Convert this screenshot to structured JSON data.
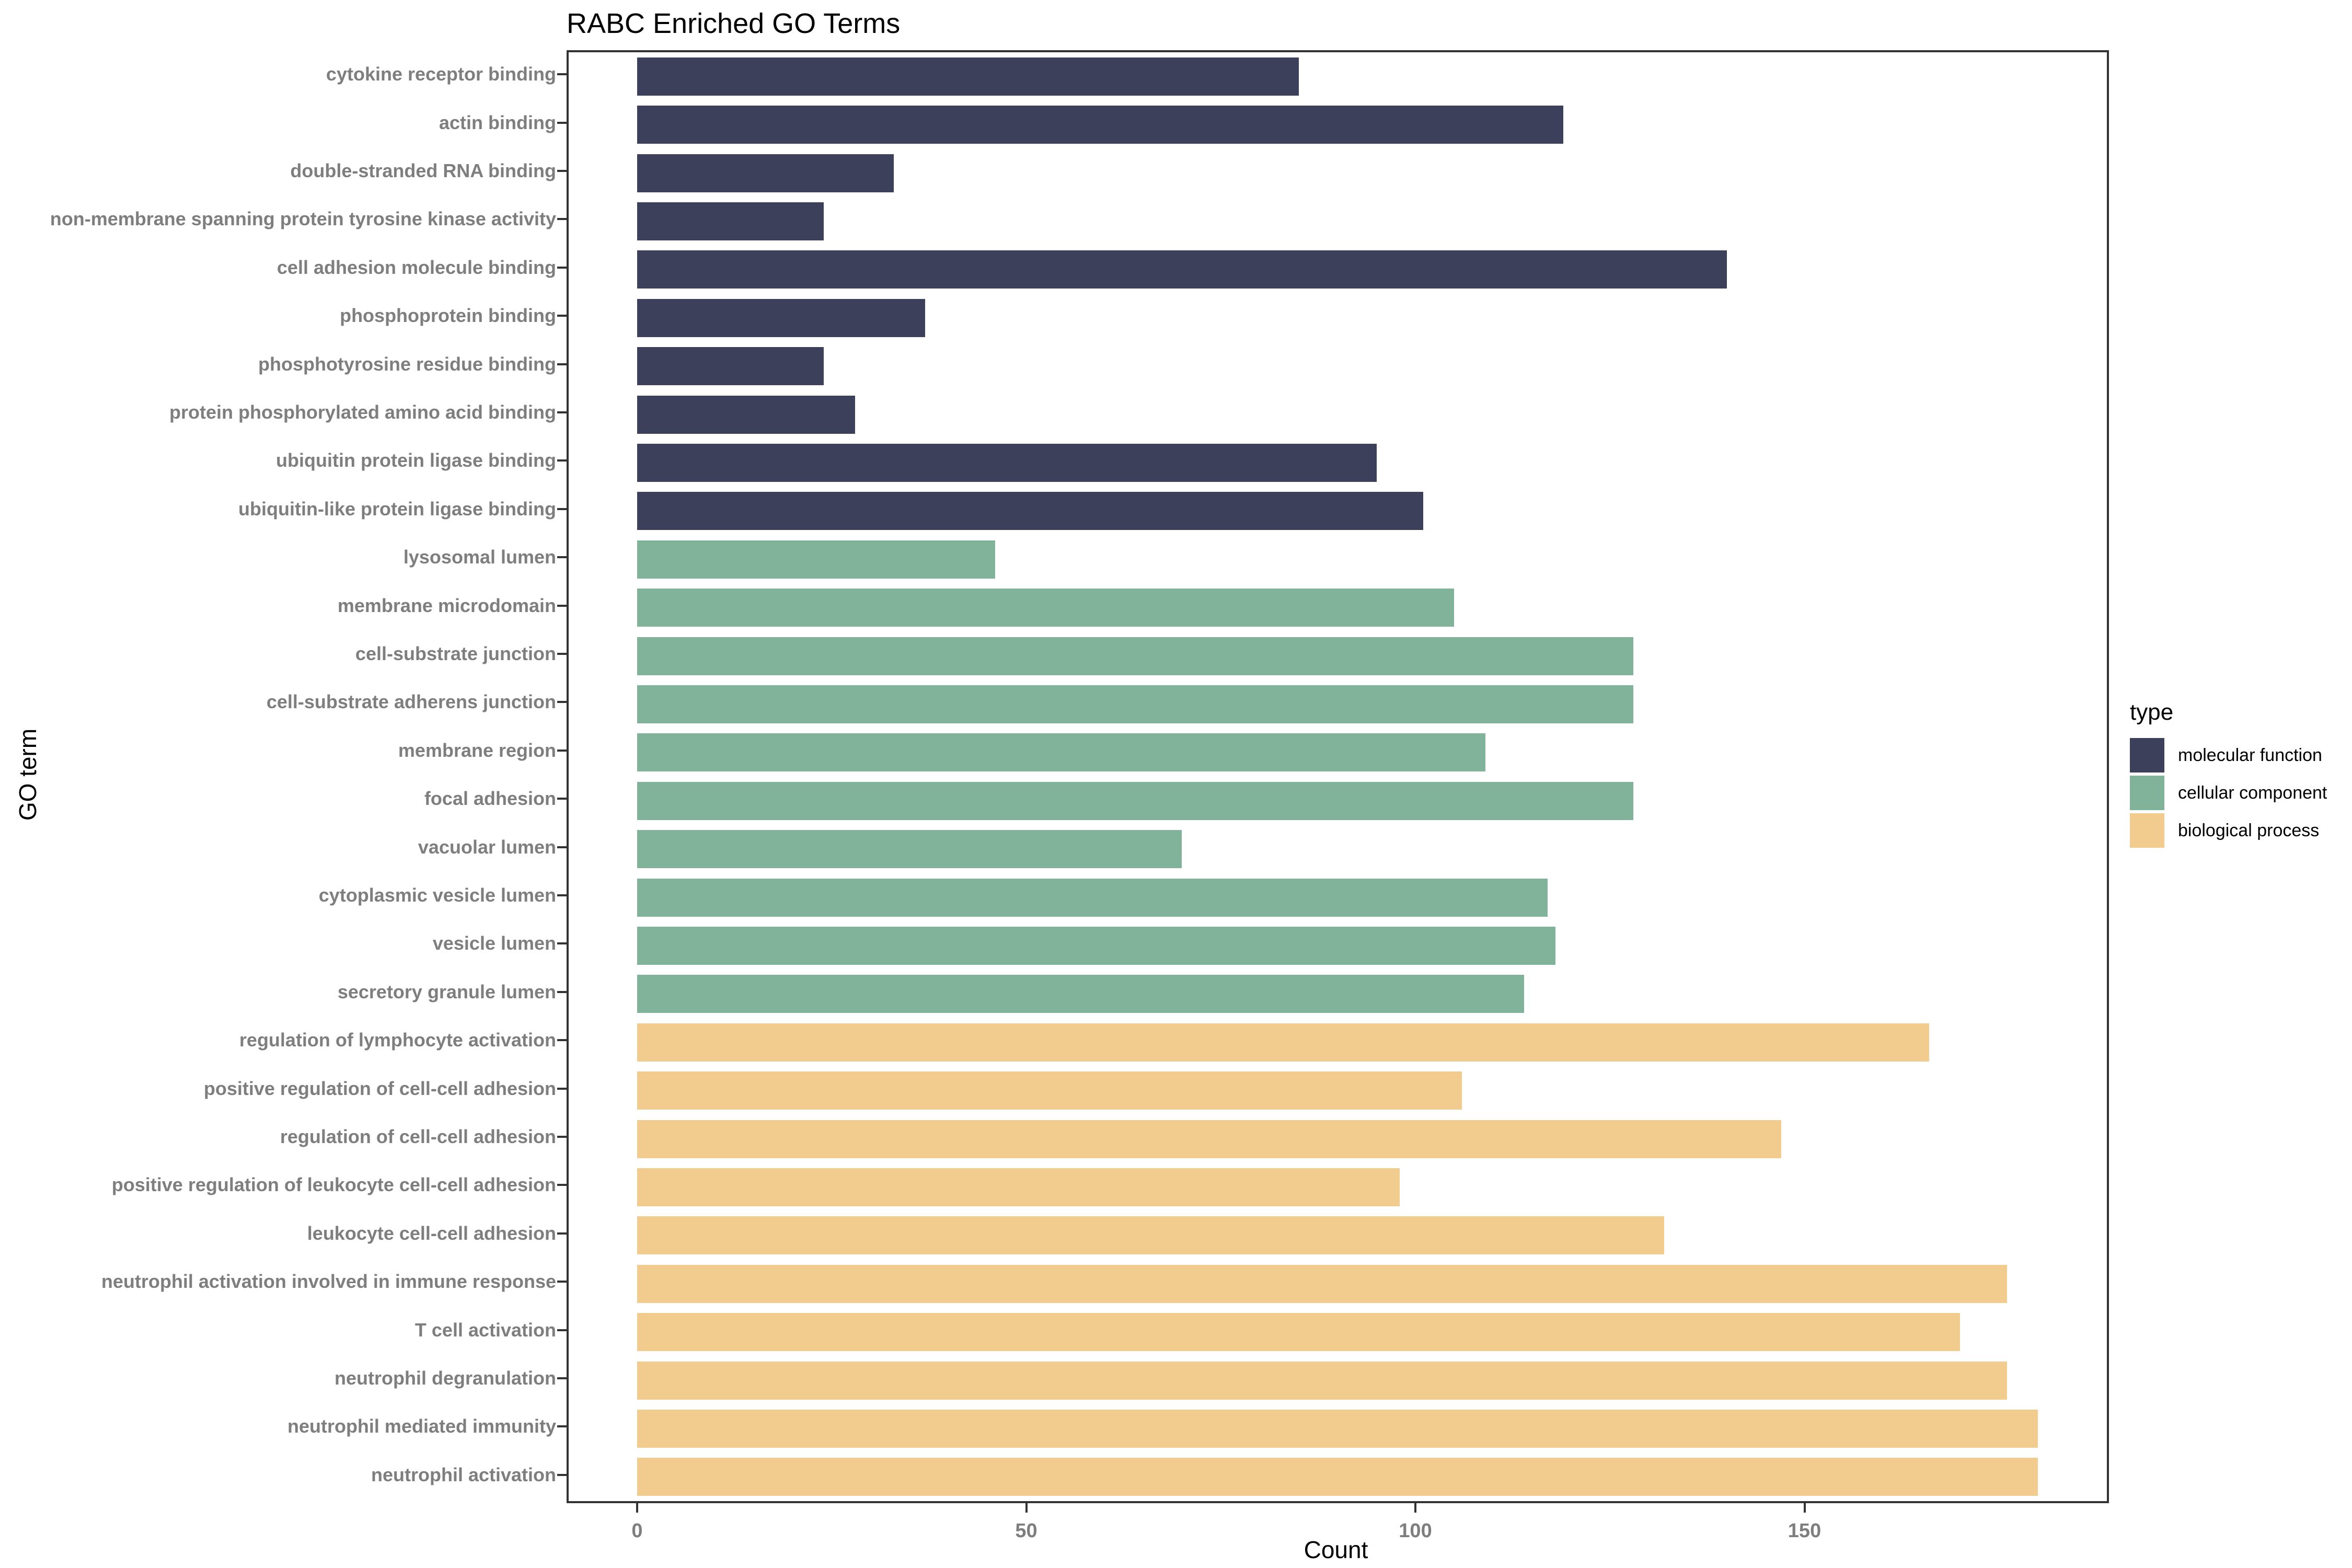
{
  "title": "RABC Enriched GO Terms",
  "x_axis": {
    "label": "Count",
    "ticks": [
      0,
      50,
      100,
      150
    ]
  },
  "y_axis": {
    "label": "GO term"
  },
  "legend": {
    "title": "type",
    "items": [
      {
        "label": "molecular function",
        "color": "#3D405B"
      },
      {
        "label": "cellular component",
        "color": "#81B29A"
      },
      {
        "label": "biological process",
        "color": "#F2CC8F"
      }
    ]
  },
  "chart_data": {
    "type": "bar",
    "orientation": "horizontal",
    "title": "RABC Enriched GO Terms",
    "xlabel": "Count",
    "ylabel": "GO term",
    "xlim": [
      0,
      189
    ],
    "x_ticks": [
      0,
      50,
      100,
      150
    ],
    "grid": false,
    "legend_position": "right",
    "legend_title": "type",
    "type_colors": {
      "molecular function": "#3D405B",
      "cellular component": "#81B29A",
      "biological process": "#F2CC8F"
    },
    "bars": [
      {
        "term": "cytokine receptor binding",
        "count": 85,
        "type": "molecular function"
      },
      {
        "term": "actin binding",
        "count": 119,
        "type": "molecular function"
      },
      {
        "term": "double-stranded RNA binding",
        "count": 33,
        "type": "molecular function"
      },
      {
        "term": "non-membrane spanning protein tyrosine kinase activity",
        "count": 24,
        "type": "molecular function"
      },
      {
        "term": "cell adhesion molecule binding",
        "count": 140,
        "type": "molecular function"
      },
      {
        "term": "phosphoprotein binding",
        "count": 37,
        "type": "molecular function"
      },
      {
        "term": "phosphotyrosine residue binding",
        "count": 24,
        "type": "molecular function"
      },
      {
        "term": "protein phosphorylated amino acid binding",
        "count": 28,
        "type": "molecular function"
      },
      {
        "term": "ubiquitin protein ligase binding",
        "count": 95,
        "type": "molecular function"
      },
      {
        "term": "ubiquitin-like protein ligase binding",
        "count": 101,
        "type": "molecular function"
      },
      {
        "term": "lysosomal lumen",
        "count": 46,
        "type": "cellular component"
      },
      {
        "term": "membrane microdomain",
        "count": 105,
        "type": "cellular component"
      },
      {
        "term": "cell-substrate junction",
        "count": 128,
        "type": "cellular component"
      },
      {
        "term": "cell-substrate adherens junction",
        "count": 128,
        "type": "cellular component"
      },
      {
        "term": "membrane region",
        "count": 109,
        "type": "cellular component"
      },
      {
        "term": "focal adhesion",
        "count": 128,
        "type": "cellular component"
      },
      {
        "term": "vacuolar lumen",
        "count": 70,
        "type": "cellular component"
      },
      {
        "term": "cytoplasmic vesicle lumen",
        "count": 117,
        "type": "cellular component"
      },
      {
        "term": "vesicle lumen",
        "count": 118,
        "type": "cellular component"
      },
      {
        "term": "secretory granule lumen",
        "count": 114,
        "type": "cellular component"
      },
      {
        "term": "regulation of lymphocyte activation",
        "count": 166,
        "type": "biological process"
      },
      {
        "term": "positive regulation of cell-cell adhesion",
        "count": 106,
        "type": "biological process"
      },
      {
        "term": "regulation of cell-cell adhesion",
        "count": 147,
        "type": "biological process"
      },
      {
        "term": "positive regulation of leukocyte cell-cell adhesion",
        "count": 98,
        "type": "biological process"
      },
      {
        "term": "leukocyte cell-cell adhesion",
        "count": 132,
        "type": "biological process"
      },
      {
        "term": "neutrophil activation involved in immune response",
        "count": 176,
        "type": "biological process"
      },
      {
        "term": "T cell activation",
        "count": 170,
        "type": "biological process"
      },
      {
        "term": "neutrophil degranulation",
        "count": 176,
        "type": "biological process"
      },
      {
        "term": "neutrophil mediated immunity",
        "count": 180,
        "type": "biological process"
      },
      {
        "term": "neutrophil activation",
        "count": 180,
        "type": "biological process"
      }
    ]
  }
}
